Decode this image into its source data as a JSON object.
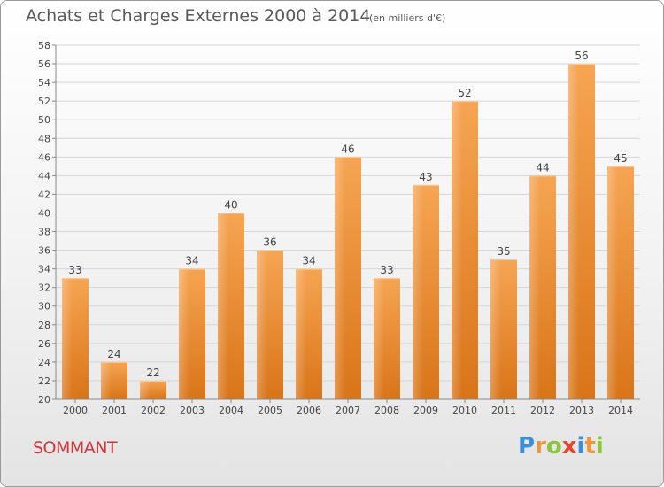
{
  "chart_data": {
    "type": "bar",
    "title": "Achats et Charges Externes 2000 à 2014",
    "subtitle": "(en milliers d'€)",
    "categories": [
      "2000",
      "2001",
      "2002",
      "2003",
      "2004",
      "2005",
      "2006",
      "2007",
      "2008",
      "2009",
      "2010",
      "2011",
      "2012",
      "2013",
      "2014"
    ],
    "values": [
      33,
      24,
      22,
      34,
      40,
      36,
      34,
      46,
      33,
      43,
      52,
      35,
      44,
      56,
      45
    ],
    "ylim": [
      20,
      58
    ],
    "yticks": [
      20,
      22,
      24,
      26,
      28,
      30,
      32,
      34,
      36,
      38,
      40,
      42,
      44,
      46,
      48,
      50,
      52,
      54,
      56,
      58
    ],
    "grid": true,
    "bar_color": "#f0953a"
  },
  "commune": "SOMMANT",
  "brand": {
    "letters": [
      "P",
      "r",
      "o",
      "x",
      "i",
      "t",
      "i"
    ],
    "colors": [
      "#3a8fd8",
      "#f0953a",
      "#8cc63f",
      "#e8452c",
      "#3a8fd8",
      "#f0953a",
      "#8cc63f"
    ]
  }
}
